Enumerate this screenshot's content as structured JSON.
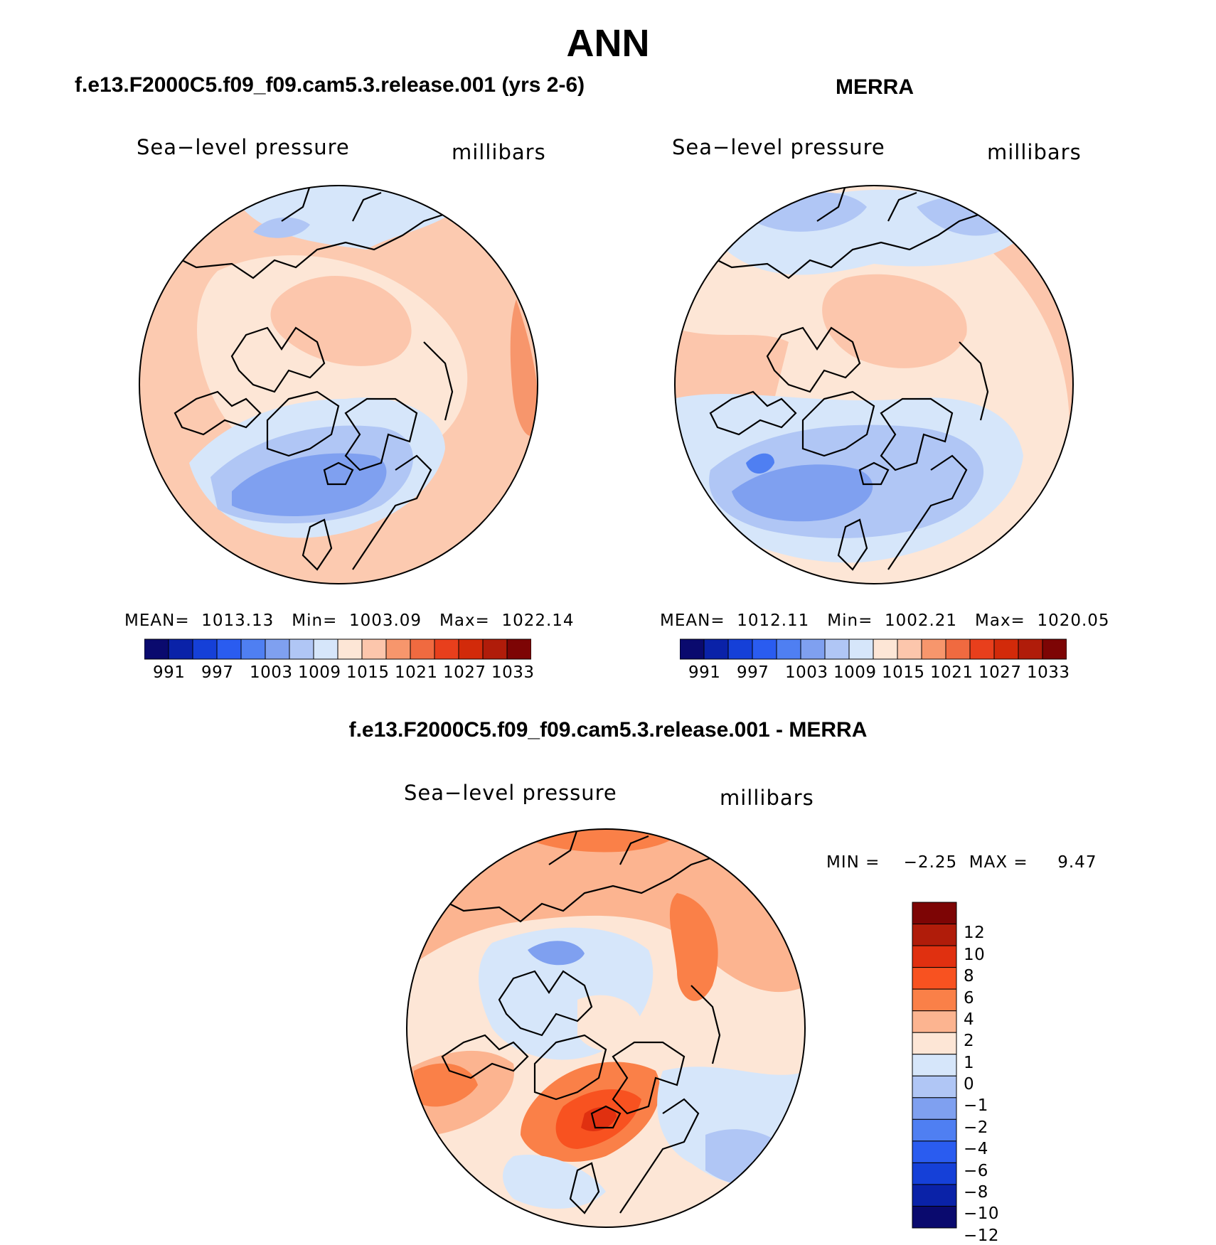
{
  "figure": {
    "title": "ANN",
    "panels": [
      {
        "id": "model",
        "title": "f.e13.F2000C5.f09_f09.cam5.3.release.001 (yrs 2-6)",
        "variable": "Sea−level pressure",
        "units": "millibars",
        "stats": "MEAN=  1013.13   Min=  1003.09   Max=  1022.14",
        "colorbar_ticks": [
          "991",
          "997",
          "1003",
          "1009",
          "1015",
          "1021",
          "1027",
          "1033"
        ]
      },
      {
        "id": "obs",
        "title": "MERRA",
        "variable": "Sea−level pressure",
        "units": "millibars",
        "stats": "MEAN=  1012.11   Min=  1002.21   Max=  1020.05",
        "colorbar_ticks": [
          "991",
          "997",
          "1003",
          "1009",
          "1015",
          "1021",
          "1027",
          "1033"
        ]
      },
      {
        "id": "diff",
        "title": "f.e13.F2000C5.f09_f09.cam5.3.release.001 - MERRA",
        "variable": "Sea−level pressure",
        "units": "millibars",
        "stats": "MIN =    −2.25  MAX =     9.47",
        "colorbar_ticks": [
          "12",
          "10",
          "8",
          "6",
          "4",
          "2",
          "1",
          "0",
          "−1",
          "−2",
          "−4",
          "−6",
          "−8",
          "−10",
          "−12"
        ]
      }
    ],
    "colors": {
      "abs_scale": [
        "#0a0a6e",
        "#0a22a8",
        "#1540d8",
        "#2a5cf0",
        "#4f7ff2",
        "#7fa0f0",
        "#b0c6f5",
        "#d6e6fa",
        "#fde6d6",
        "#fcc6ac",
        "#f7966c",
        "#f06a40",
        "#e83f1c",
        "#d22a0a",
        "#b01c0a",
        "#7d0505"
      ],
      "diff_scale": [
        "#7d0505",
        "#b01c0a",
        "#e03010",
        "#f85220",
        "#fa8048",
        "#fcb490",
        "#fde6d6",
        "#d6e6fa",
        "#b0c6f5",
        "#7fa0f0",
        "#4f7ff2",
        "#2a5cf0",
        "#1540d8",
        "#0a22a8",
        "#0a0a6e"
      ],
      "coastline": "#000000"
    }
  }
}
